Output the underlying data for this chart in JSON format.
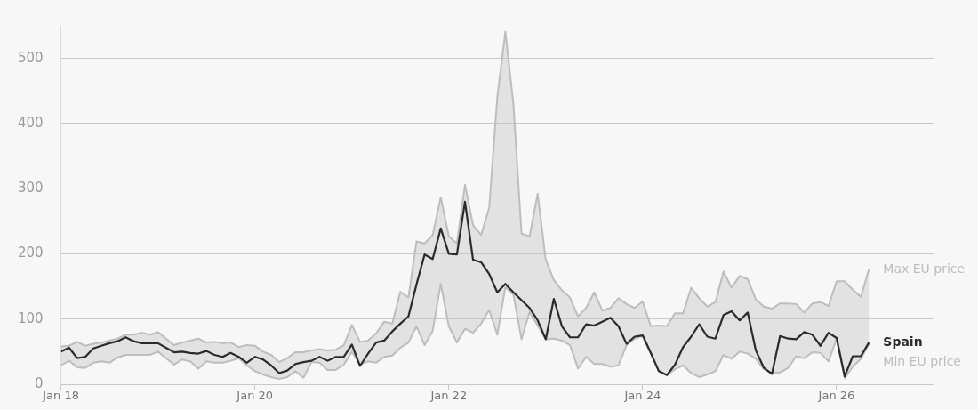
{
  "chart_data": {
    "type": "line",
    "x": [
      "2018-01",
      "2018-02",
      "2018-03",
      "2018-04",
      "2018-05",
      "2018-06",
      "2018-07",
      "2018-08",
      "2018-09",
      "2018-10",
      "2018-11",
      "2018-12",
      "2019-01",
      "2019-02",
      "2019-03",
      "2019-04",
      "2019-05",
      "2019-06",
      "2019-07",
      "2019-08",
      "2019-09",
      "2019-10",
      "2019-11",
      "2019-12",
      "2020-01",
      "2020-02",
      "2020-03",
      "2020-04",
      "2020-05",
      "2020-06",
      "2020-07",
      "2020-08",
      "2020-09",
      "2020-10",
      "2020-11",
      "2020-12",
      "2021-01",
      "2021-02",
      "2021-03",
      "2021-04",
      "2021-05",
      "2021-06",
      "2021-07",
      "2021-08",
      "2021-09",
      "2021-10",
      "2021-11",
      "2021-12",
      "2022-01",
      "2022-02",
      "2022-03",
      "2022-04",
      "2022-05",
      "2022-06",
      "2022-07",
      "2022-08",
      "2022-09",
      "2022-10",
      "2022-11",
      "2022-12",
      "2023-01",
      "2023-02",
      "2023-03",
      "2023-04",
      "2023-05",
      "2023-06",
      "2023-07",
      "2023-08",
      "2023-09",
      "2023-10",
      "2023-11",
      "2023-12",
      "2024-01",
      "2024-02",
      "2024-03",
      "2024-04",
      "2024-05",
      "2024-06",
      "2024-07",
      "2024-08",
      "2024-09",
      "2024-10",
      "2024-11",
      "2024-12",
      "2025-01",
      "2025-02",
      "2025-03",
      "2025-04",
      "2025-05",
      "2025-06",
      "2025-07",
      "2025-08",
      "2025-09",
      "2025-10",
      "2025-11",
      "2025-12",
      "2026-01",
      "2026-02",
      "2026-03",
      "2026-04",
      "2026-05"
    ],
    "series": [
      {
        "name": "Max EU price",
        "type": "area",
        "color": "#bdbdbd",
        "values": [
          58,
          59,
          65,
          59,
          62,
          64,
          67,
          70,
          76,
          76,
          79,
          76,
          80,
          70,
          60,
          64,
          67,
          70,
          64,
          65,
          63,
          64,
          57,
          60,
          59,
          50,
          45,
          34,
          40,
          49,
          49,
          52,
          54,
          52,
          53,
          60,
          91,
          65,
          67,
          78,
          96,
          93,
          142,
          133,
          219,
          216,
          229,
          287,
          227,
          216,
          306,
          244,
          229,
          271,
          440,
          541,
          429,
          231,
          227,
          292,
          191,
          160,
          144,
          133,
          104,
          117,
          141,
          113,
          117,
          132,
          123,
          117,
          127,
          89,
          90,
          89,
          109,
          109,
          148,
          132,
          119,
          126,
          173,
          148,
          166,
          161,
          130,
          119,
          116,
          124,
          124,
          123,
          110,
          124,
          126,
          120,
          158,
          158,
          145,
          134,
          176
        ]
      },
      {
        "name": "Min EU price",
        "type": "line",
        "color": "#bdbdbd",
        "values": [
          29,
          36,
          26,
          25,
          33,
          35,
          33,
          41,
          45,
          45,
          45,
          45,
          50,
          40,
          30,
          38,
          35,
          24,
          35,
          33,
          33,
          36,
          40,
          29,
          20,
          15,
          11,
          8,
          11,
          20,
          10,
          34,
          33,
          22,
          22,
          30,
          50,
          30,
          35,
          33,
          42,
          44,
          56,
          64,
          89,
          60,
          82,
          154,
          89,
          64,
          85,
          79,
          93,
          114,
          76,
          149,
          137,
          69,
          111,
          90,
          69,
          70,
          67,
          60,
          24,
          42,
          31,
          31,
          27,
          29,
          60,
          70,
          74,
          48,
          20,
          14,
          23,
          29,
          17,
          11,
          15,
          20,
          45,
          39,
          50,
          47,
          39,
          23,
          17,
          18,
          25,
          43,
          40,
          49,
          48,
          35,
          70,
          9,
          27,
          39,
          62
        ]
      },
      {
        "name": "Spain",
        "type": "line",
        "color": "#2b2b2b",
        "values": [
          50,
          56,
          40,
          42,
          55,
          59,
          63,
          66,
          72,
          66,
          63,
          63,
          63,
          56,
          49,
          50,
          48,
          47,
          51,
          45,
          42,
          48,
          42,
          33,
          42,
          38,
          29,
          17,
          21,
          31,
          34,
          36,
          42,
          36,
          42,
          42,
          61,
          28,
          47,
          64,
          67,
          81,
          93,
          104,
          153,
          199,
          192,
          239,
          200,
          199,
          280,
          191,
          187,
          169,
          141,
          154,
          141,
          129,
          117,
          98,
          69,
          131,
          89,
          72,
          72,
          92,
          90,
          96,
          102,
          89,
          62,
          73,
          75,
          48,
          20,
          14,
          30,
          57,
          73,
          92,
          73,
          70,
          106,
          112,
          98,
          110,
          52,
          25,
          16,
          74,
          70,
          69,
          80,
          76,
          59,
          79,
          71,
          12,
          43,
          43,
          64
        ]
      }
    ],
    "xlim": [
      "2018-01",
      "2027-01"
    ],
    "xticks": [
      {
        "value": "2018-01",
        "label": "Jan 18"
      },
      {
        "value": "2020-01",
        "label": "Jan 20"
      },
      {
        "value": "2022-01",
        "label": "Jan 22"
      },
      {
        "value": "2024-01",
        "label": "Jan 24"
      },
      {
        "value": "2026-01",
        "label": "Jan 26"
      }
    ],
    "ylim": [
      0,
      550
    ],
    "yticks": [
      0,
      100,
      200,
      300,
      400,
      500
    ],
    "grid": "y",
    "legend": false,
    "marker": "none",
    "line_style": "solid"
  }
}
